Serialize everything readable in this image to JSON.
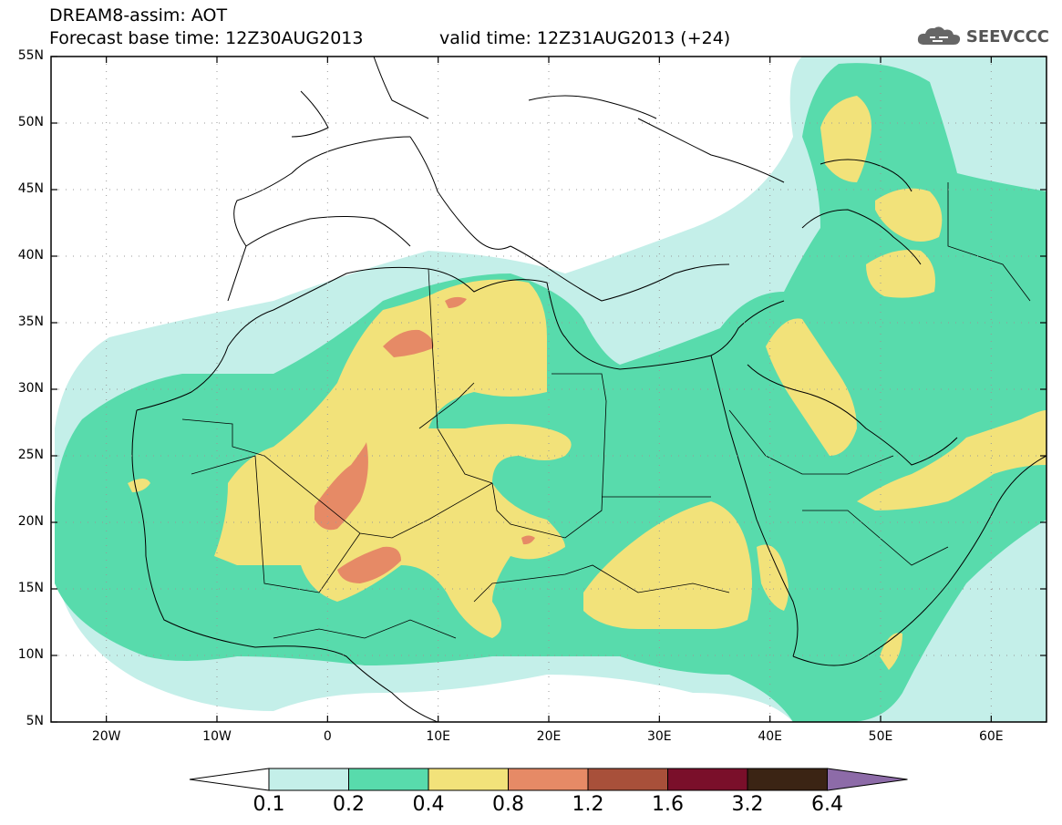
{
  "header": {
    "line1": "DREAM8-assim: AOT",
    "line2": "Forecast base time: 12Z30AUG2013",
    "line3": "valid time: 12Z31AUG2013 (+24)",
    "logo_text": "SEEVCCC",
    "logo_icon": "cloud-icon"
  },
  "axes": {
    "lat_labels": [
      "55N",
      "50N",
      "45N",
      "40N",
      "35N",
      "30N",
      "25N",
      "20N",
      "15N",
      "10N",
      "5N"
    ],
    "lon_labels": [
      "20W",
      "10W",
      "0",
      "10E",
      "20E",
      "30E",
      "40E",
      "50E",
      "60E"
    ],
    "lat_range": [
      5,
      55
    ],
    "lon_range": [
      -25,
      65
    ],
    "grid": "dotted"
  },
  "colorbar": {
    "labels": [
      "0.1",
      "0.2",
      "0.4",
      "0.8",
      "1.2",
      "1.6",
      "3.2",
      "6.4"
    ],
    "colors": [
      "#c4efe9",
      "#58dbac",
      "#f2e27a",
      "#e68a66",
      "#a8503a",
      "#7a0f2a",
      "#3b2414"
    ],
    "under_color": "#ffffff",
    "over_color": "#8d6ba8"
  },
  "palette": {
    "c01": "#c4efe9",
    "c02": "#58dbac",
    "c04": "#f2e27a",
    "c08": "#e68a66"
  }
}
